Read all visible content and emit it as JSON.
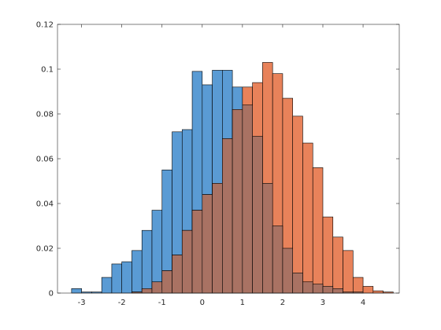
{
  "chart_data": {
    "type": "bar",
    "title": "",
    "xlabel": "",
    "ylabel": "",
    "xlim": [
      -3.6,
      4.9
    ],
    "ylim": [
      0,
      0.12
    ],
    "bin_width": 0.25,
    "bin_start": -3.25,
    "xticks": [
      "-3",
      "-2",
      "-1",
      "0",
      "1",
      "2",
      "3",
      "4"
    ],
    "yticks": [
      "0",
      "0.02",
      "0.04",
      "0.06",
      "0.08",
      "0.1",
      "0.12"
    ],
    "grid": false,
    "legend": "none",
    "series": [
      {
        "color": "#5a9bd4",
        "values": [
          0.002,
          0.0005,
          0.0005,
          0.007,
          0.013,
          0.014,
          0.019,
          0.028,
          0.037,
          0.055,
          0.072,
          0.073,
          0.099,
          0.093,
          0.0995,
          0.0995,
          0.092,
          0.084,
          0.07,
          0.049,
          0.03,
          0.02,
          0.009,
          0.005,
          0.004,
          0.003,
          0.002,
          0.0005,
          0.0005,
          0.0,
          0.0,
          0.0
        ]
      },
      {
        "color": "#e8825a",
        "values": [
          0.0,
          0.0,
          0.0,
          0.0,
          0.0,
          0.0,
          0.0005,
          0.002,
          0.005,
          0.01,
          0.017,
          0.028,
          0.037,
          0.044,
          0.049,
          0.069,
          0.082,
          0.092,
          0.094,
          0.103,
          0.098,
          0.087,
          0.079,
          0.067,
          0.056,
          0.034,
          0.025,
          0.019,
          0.007,
          0.003,
          0.001,
          0.0005
        ]
      }
    ]
  }
}
